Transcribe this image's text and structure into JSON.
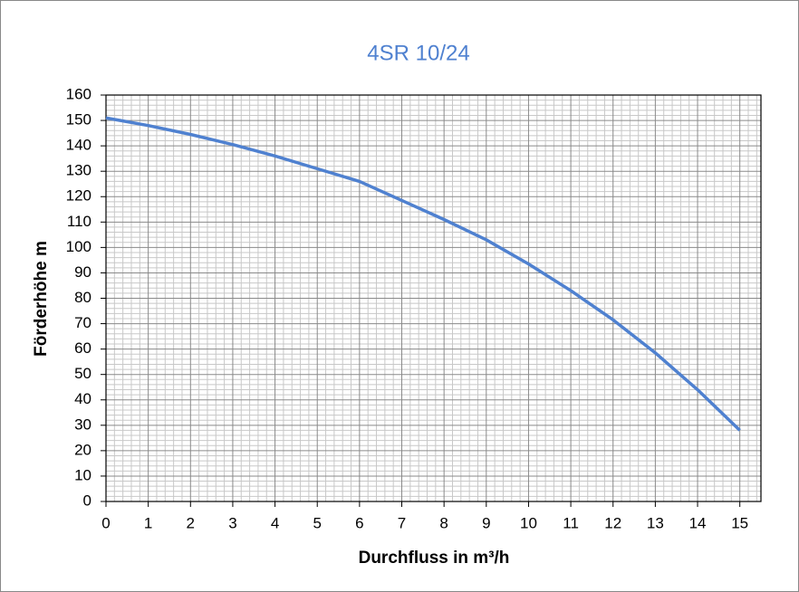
{
  "chart_data": {
    "type": "line",
    "title": "4SR 10/24",
    "xlabel": "Durchfluss  in m³/h",
    "ylabel": "Förderhöhe  m",
    "x": [
      0,
      1,
      2,
      3,
      4,
      5,
      6,
      7,
      8,
      9,
      10,
      11,
      12,
      13,
      14,
      15
    ],
    "series": [
      {
        "color": "#4f81d0",
        "values": [
          151,
          148,
          144.5,
          140.5,
          136,
          131,
          126,
          118.5,
          111,
          103,
          93.5,
          83,
          71.5,
          58.5,
          44,
          28
        ]
      }
    ],
    "xlim": [
      0,
      15.5
    ],
    "ylim": [
      0,
      160
    ],
    "xticks": [
      0,
      1,
      2,
      3,
      4,
      5,
      6,
      7,
      8,
      9,
      10,
      11,
      12,
      13,
      14,
      15
    ],
    "yticks": [
      0,
      10,
      20,
      30,
      40,
      50,
      60,
      70,
      80,
      90,
      100,
      110,
      120,
      130,
      140,
      150,
      160
    ],
    "grid": true,
    "minor_grid": true
  }
}
